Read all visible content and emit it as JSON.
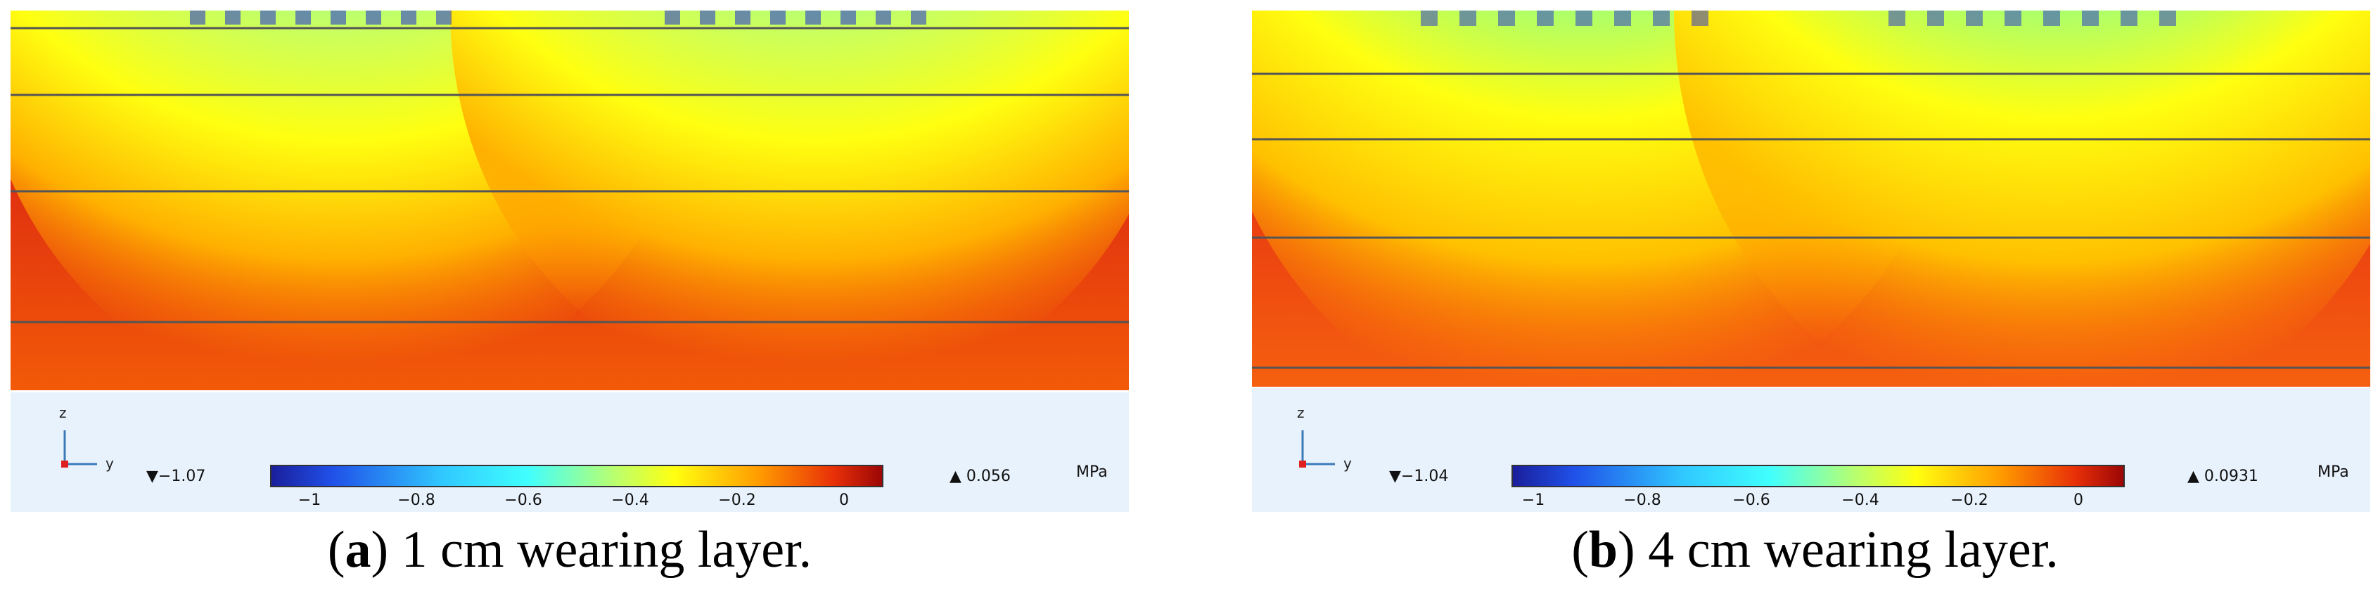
{
  "colors": {
    "red": "#e8320a",
    "darkred": "#a00808",
    "orange": "#ff9a00",
    "yellow": "#ffff10",
    "cyan": "#38ffff",
    "blue": "#1a2ad8",
    "legend_bg": "#e8f2fc"
  },
  "panels": [
    {
      "id": "a",
      "axis_z": "z",
      "axis_y": "y",
      "min_value": "▼−1.07",
      "max_value": "▲ 0.056",
      "unit": "MPa",
      "colorbar_ticks": [
        "−1",
        "−0.8",
        "−0.6",
        "−0.4",
        "−0.2",
        "0"
      ],
      "caption_letter": "a",
      "caption_text": " 1 cm wearing layer."
    },
    {
      "id": "b",
      "axis_z": "z",
      "axis_y": "y",
      "min_value": "▼−1.04",
      "max_value": "▲ 0.0931",
      "unit": "MPa",
      "colorbar_ticks": [
        "−1",
        "−0.8",
        "−0.6",
        "−0.4",
        "−0.2",
        "0"
      ],
      "caption_letter": "b",
      "caption_text": " 4 cm wearing layer."
    }
  ]
}
